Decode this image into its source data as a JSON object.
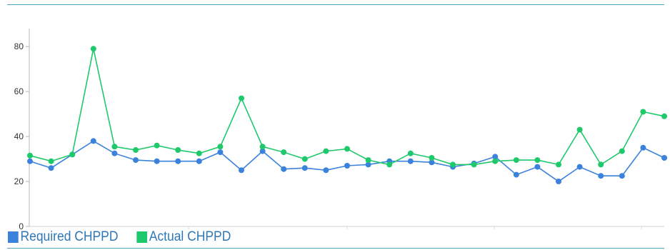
{
  "chart_data": {
    "type": "line",
    "x_count": 31,
    "ylim": [
      0,
      88
    ],
    "yticks": [
      0,
      20,
      40,
      60,
      80
    ],
    "grid": false,
    "legend_position": "bottom-left",
    "series": [
      {
        "name": "Required CHPPD",
        "color": "#3b82dc",
        "values": [
          29,
          26,
          32,
          38,
          32.5,
          29.5,
          29,
          29,
          29,
          33,
          25,
          33.5,
          25.5,
          26,
          25,
          27,
          27.5,
          29,
          29,
          28.5,
          26.5,
          28,
          31,
          23,
          26.5,
          20,
          26.5,
          22.5,
          22.5,
          35,
          30.5
        ]
      },
      {
        "name": "Actual CHPPD",
        "color": "#1ec96b",
        "values": [
          31.5,
          29,
          32,
          79,
          35.5,
          34,
          36,
          34,
          32.5,
          35.5,
          57,
          35.5,
          33,
          30,
          33.5,
          34.5,
          29.5,
          27.5,
          32.5,
          30.5,
          27.5,
          27.5,
          29,
          29.5,
          29.5,
          27.5,
          43,
          27.5,
          33.5,
          51,
          49
        ]
      }
    ]
  }
}
